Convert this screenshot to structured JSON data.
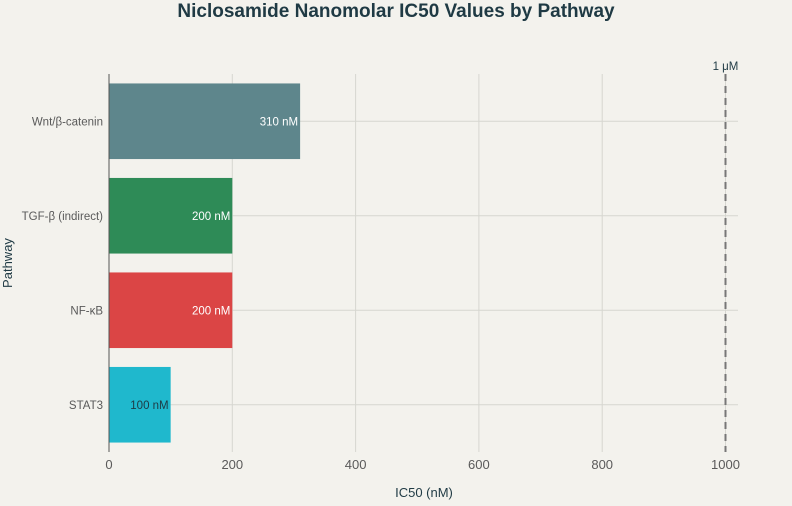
{
  "chart_data": {
    "type": "bar",
    "orientation": "horizontal",
    "title": "Niclosamide Nanomolar IC50 Values by Pathway",
    "xlabel": "IC50 (nM)",
    "ylabel": "Pathway",
    "xlim": [
      0,
      1020
    ],
    "xticks": [
      0,
      200,
      400,
      600,
      800,
      1000
    ],
    "xtick_labels": [
      "0",
      "200",
      "400",
      "600",
      "800",
      "1000"
    ],
    "grid": true,
    "categories": [
      "Wnt/β-catenin",
      "TGF-β (indirect)",
      "NF-κB",
      "STAT3"
    ],
    "values": [
      310,
      200,
      200,
      100
    ],
    "data_labels": [
      "310 nM",
      "200 nM",
      "200 nM",
      "100 nM"
    ],
    "bar_colors": [
      "#5e868c",
      "#2e8b57",
      "#db4545",
      "#1fb8cd"
    ],
    "label_colors": [
      "#ffffff",
      "#ffffff",
      "#ffffff",
      "#1f3a44"
    ],
    "reference_line": {
      "value": 1000,
      "label": "1 μM",
      "color": "#777777"
    }
  }
}
